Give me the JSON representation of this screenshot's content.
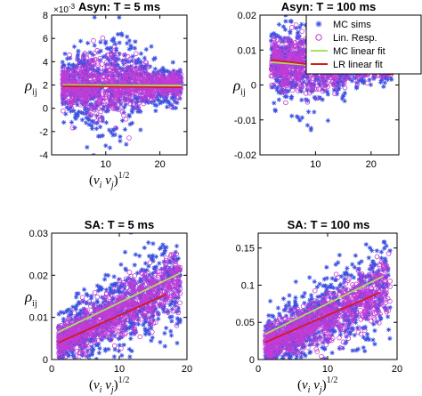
{
  "legend": {
    "placement": "top-right",
    "entries": [
      {
        "label": "MC sims",
        "marker": "asterisk",
        "color": "#3b50e0"
      },
      {
        "label": "Lin. Resp.",
        "marker": "circle",
        "color": "#c23bd6"
      },
      {
        "label": "MC linear fit",
        "marker": "line",
        "color": "#a8e060"
      },
      {
        "label": "LR linear fit",
        "marker": "line",
        "color": "#d41a1a"
      }
    ]
  },
  "chart_data": [
    {
      "type": "scatter",
      "title": "Asyn: T = 5 ms",
      "xlabel": "(v_i v_j)^1/2",
      "ylabel": "ρ_ij",
      "exponent_label": "×10",
      "exponent_power": "-3",
      "xlim": [
        0,
        25
      ],
      "ylim": [
        -4,
        8
      ],
      "xticks": [
        10,
        20
      ],
      "xticklabels": [
        "10",
        "20"
      ],
      "yticks": [
        -4,
        -2,
        0,
        2,
        4,
        6,
        8
      ],
      "yticklabels": [
        "-4",
        "-2",
        "0",
        "2",
        "4",
        "6",
        "8"
      ],
      "cloud": {
        "x_range": [
          2,
          24
        ],
        "center": 2.0,
        "spread_peak": 2.3,
        "spread_peak_x": 10
      },
      "series": [
        {
          "name": "MC linear fit",
          "x": [
            2,
            24
          ],
          "y": [
            2.0,
            1.95
          ]
        },
        {
          "name": "LR linear fit",
          "x": [
            2,
            24
          ],
          "y": [
            1.9,
            1.8
          ]
        }
      ]
    },
    {
      "type": "scatter",
      "title": "Asyn: T = 100 ms",
      "xlabel": "",
      "ylabel": "ρ_ij",
      "xlim": [
        0,
        25
      ],
      "ylim": [
        -0.02,
        0.02
      ],
      "xticks": [
        10,
        20
      ],
      "xticklabels": [
        "10",
        "20"
      ],
      "yticks": [
        -0.02,
        -0.01,
        0,
        0.01,
        0.02
      ],
      "yticklabels": [
        "-0.02",
        "-0.01",
        "0",
        "0.01",
        "0.02"
      ],
      "cloud": {
        "x_range": [
          2,
          24
        ],
        "center": 0.006,
        "spread_peak": 0.0075,
        "spread_peak_x": 8
      },
      "series": [
        {
          "name": "MC linear fit",
          "x": [
            2,
            24
          ],
          "y": [
            0.0065,
            0.004
          ]
        },
        {
          "name": "LR linear fit",
          "x": [
            2,
            24
          ],
          "y": [
            0.0072,
            0.003
          ]
        }
      ]
    },
    {
      "type": "scatter",
      "title": "SA: T = 5 ms",
      "xlabel": "(v_i v_j)^1/2",
      "ylabel": "ρ_ij",
      "xlim": [
        0,
        20
      ],
      "ylim": [
        0,
        0.03
      ],
      "xticks": [
        0,
        10,
        20
      ],
      "xticklabels": [
        "0",
        "10",
        "20"
      ],
      "yticks": [
        0,
        0.01,
        0.02,
        0.03
      ],
      "yticklabels": [
        "0",
        "0.01",
        "0.02",
        "0.03"
      ],
      "cloud": {
        "x_range": [
          1,
          19
        ],
        "center_start": 0.004,
        "center_end": 0.019,
        "spread": 0.0045
      },
      "series": [
        {
          "name": "MC linear fit",
          "x": [
            1,
            19
          ],
          "y": [
            0.0065,
            0.0205
          ]
        },
        {
          "name": "LR linear fit",
          "x": [
            1,
            17
          ],
          "y": [
            0.004,
            0.0155
          ]
        }
      ]
    },
    {
      "type": "scatter",
      "title": "SA: T = 100 ms",
      "xlabel": "(v_i v_j)^1/2",
      "ylabel": "",
      "xlim": [
        0,
        20
      ],
      "ylim": [
        0,
        0.17
      ],
      "xticks": [
        0,
        10,
        20
      ],
      "xticklabels": [
        "0",
        "10",
        "20"
      ],
      "yticks": [
        0,
        0.05,
        0.1,
        0.15
      ],
      "yticklabels": [
        "0",
        "0.05",
        "0.1",
        "0.15"
      ],
      "cloud": {
        "x_range": [
          1,
          19
        ],
        "center_start": 0.02,
        "center_end": 0.1,
        "spread": 0.025
      },
      "series": [
        {
          "name": "MC linear fit",
          "x": [
            1,
            18
          ],
          "y": [
            0.034,
            0.112
          ]
        },
        {
          "name": "LR linear fit",
          "x": [
            1,
            17.5
          ],
          "y": [
            0.023,
            0.09
          ]
        }
      ]
    }
  ]
}
